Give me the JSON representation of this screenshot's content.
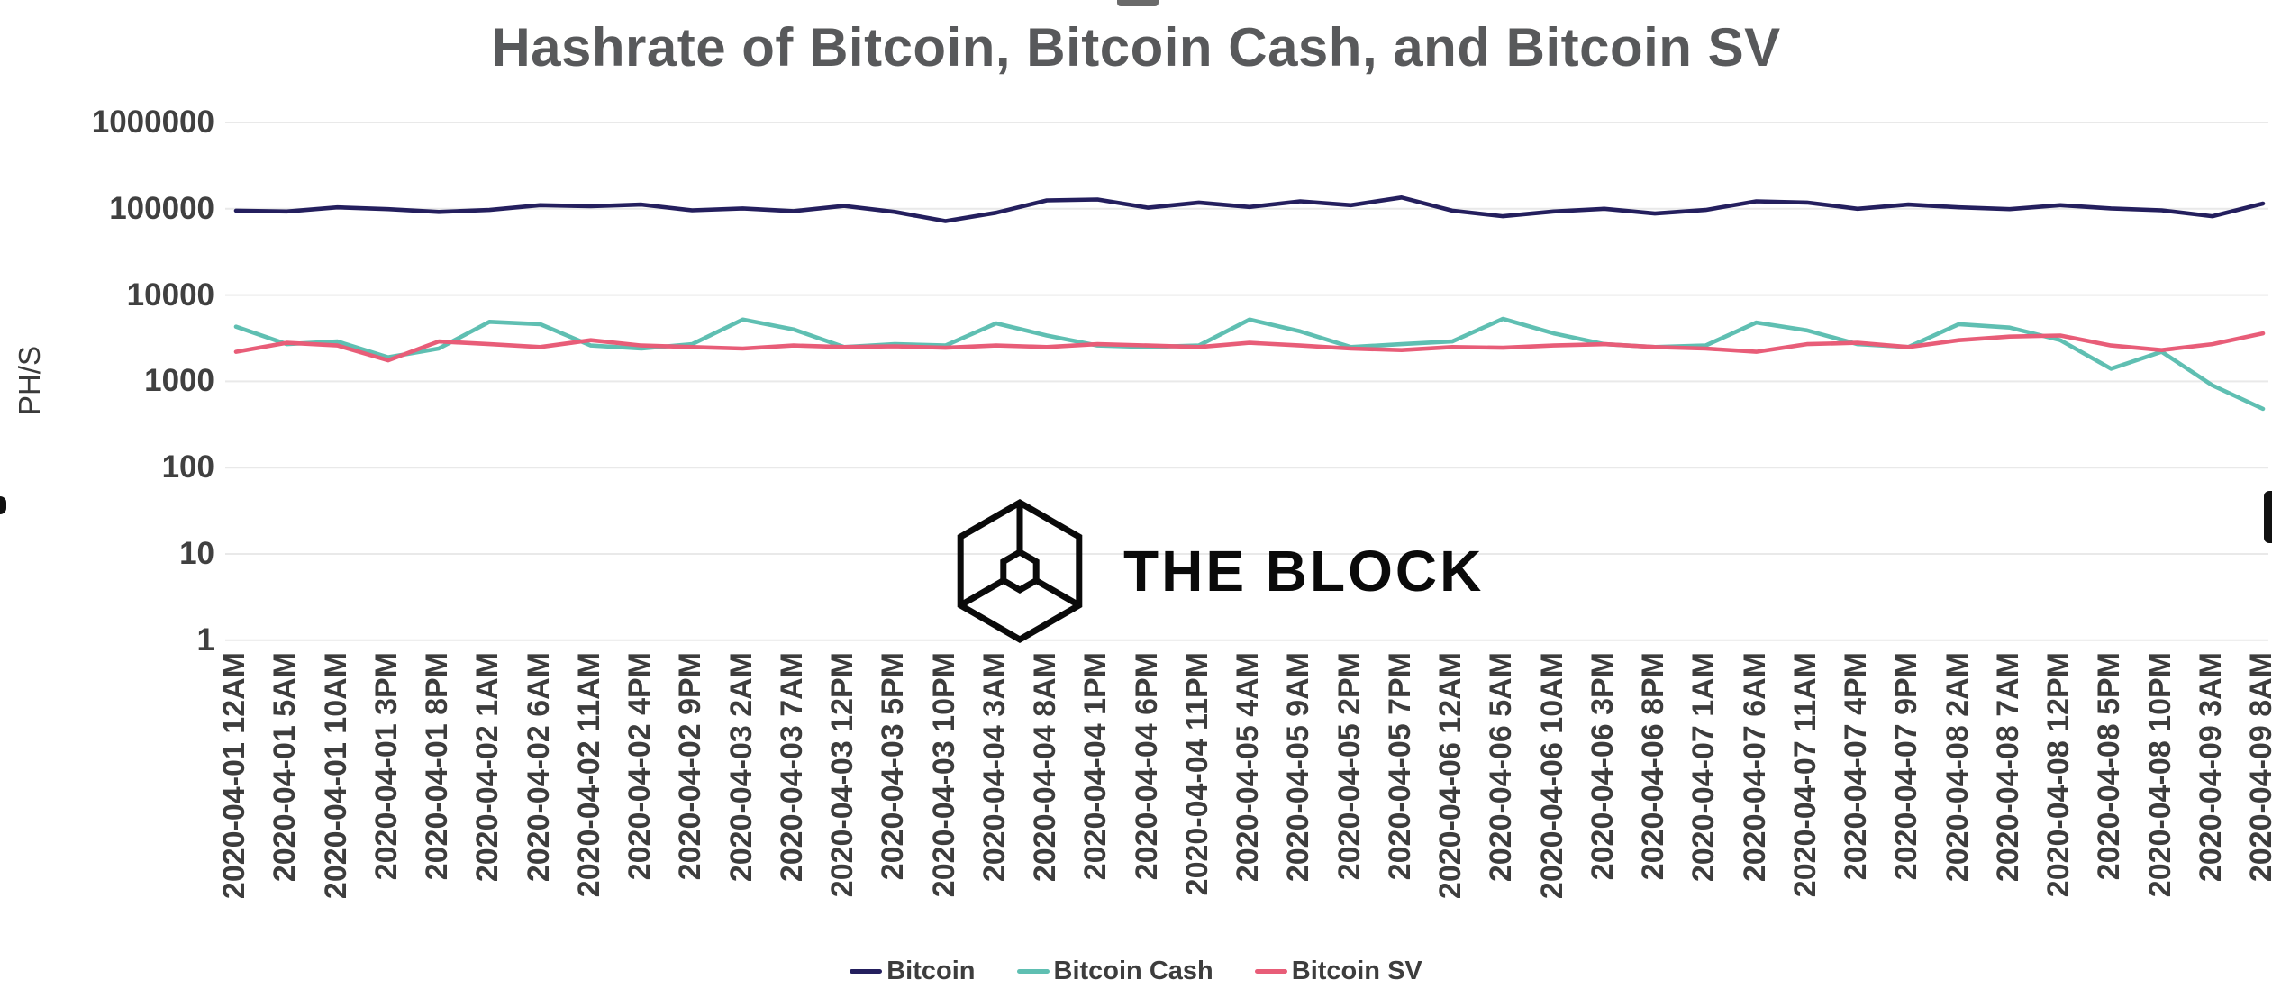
{
  "branding": {
    "logo_text": "THE BLOCK"
  },
  "chart_data": {
    "type": "line",
    "title": "Hashrate of Bitcoin, Bitcoin Cash, and Bitcoin SV",
    "xlabel": "",
    "ylabel": "PH/S",
    "y_scale": "log",
    "ylim": [
      1,
      1000000
    ],
    "yticks": [
      1000000,
      100000,
      10000,
      1000,
      100,
      10,
      1
    ],
    "grid": "horizontal",
    "legend_position": "bottom",
    "categories": [
      "2020-04-01 12AM",
      "2020-04-01 5AM",
      "2020-04-01 10AM",
      "2020-04-01 3PM",
      "2020-04-01 8PM",
      "2020-04-02 1AM",
      "2020-04-02 6AM",
      "2020-04-02 11AM",
      "2020-04-02 4PM",
      "2020-04-02 9PM",
      "2020-04-03 2AM",
      "2020-04-03 7AM",
      "2020-04-03 12PM",
      "2020-04-03 5PM",
      "2020-04-03 10PM",
      "2020-04-04 3AM",
      "2020-04-04 8AM",
      "2020-04-04 1PM",
      "2020-04-04 6PM",
      "2020-04-04 11PM",
      "2020-04-05 4AM",
      "2020-04-05 9AM",
      "2020-04-05 2PM",
      "2020-04-05 7PM",
      "2020-04-06 12AM",
      "2020-04-06 5AM",
      "2020-04-06 10AM",
      "2020-04-06 3PM",
      "2020-04-06 8PM",
      "2020-04-07 1AM",
      "2020-04-07 6AM",
      "2020-04-07 11AM",
      "2020-04-07 4PM",
      "2020-04-07 9PM",
      "2020-04-08 2AM",
      "2020-04-08 7AM",
      "2020-04-08 12PM",
      "2020-04-08 5PM",
      "2020-04-08 10PM",
      "2020-04-09 3AM",
      "2020-04-09 8AM"
    ],
    "series": [
      {
        "name": "Bitcoin",
        "color": "#241f5e",
        "values": [
          95000,
          93000,
          104000,
          99000,
          92000,
          97000,
          110000,
          107000,
          112000,
          96000,
          101000,
          94000,
          108000,
          92000,
          72000,
          90000,
          125000,
          128000,
          103000,
          118000,
          105000,
          122000,
          110000,
          135000,
          95000,
          82000,
          93000,
          100000,
          88000,
          97000,
          122000,
          118000,
          100000,
          112000,
          104000,
          99000,
          110000,
          101000,
          96000,
          82000,
          115000
        ]
      },
      {
        "name": "Bitcoin Cash",
        "color": "#5fbfb2",
        "values": [
          4300,
          2700,
          2900,
          1900,
          2400,
          4900,
          4600,
          2600,
          2400,
          2700,
          5200,
          4000,
          2500,
          2700,
          2600,
          4700,
          3400,
          2600,
          2500,
          2600,
          5200,
          3800,
          2500,
          2700,
          2900,
          5300,
          3600,
          2700,
          2500,
          2600,
          4800,
          3900,
          2700,
          2500,
          4600,
          4200,
          3000,
          1400,
          2200,
          900,
          480
        ]
      },
      {
        "name": "Bitcoin SV",
        "color": "#e85d78",
        "values": [
          2200,
          2800,
          2600,
          1750,
          2900,
          2700,
          2500,
          3000,
          2600,
          2500,
          2400,
          2600,
          2500,
          2550,
          2450,
          2600,
          2500,
          2700,
          2600,
          2500,
          2800,
          2600,
          2400,
          2300,
          2500,
          2450,
          2600,
          2700,
          2500,
          2400,
          2200,
          2700,
          2800,
          2500,
          3000,
          3300,
          3400,
          2600,
          2300,
          2700,
          3600
        ]
      }
    ]
  }
}
